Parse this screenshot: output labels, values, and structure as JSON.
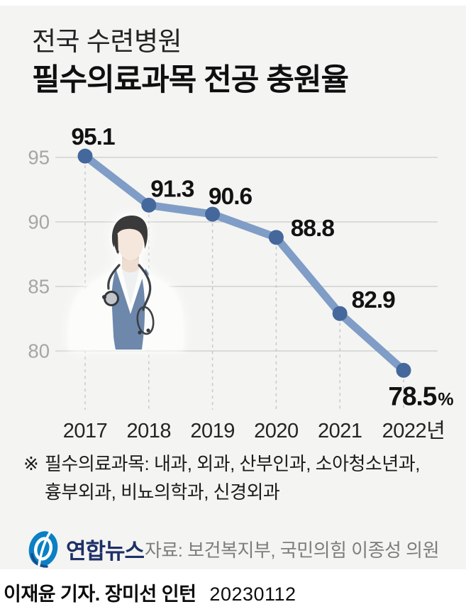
{
  "title": {
    "line1": "전국 수련병원",
    "line2": "필수의료과목 전공 충원율"
  },
  "chart_data": {
    "type": "line",
    "title": "전국 수련병원 필수의료과목 전공 충원율",
    "categories": [
      "2017",
      "2018",
      "2019",
      "2020",
      "2021",
      "2022년"
    ],
    "values": [
      95.1,
      91.3,
      90.6,
      88.8,
      82.9,
      78.5
    ],
    "value_labels": [
      "95.1",
      "91.3",
      "90.6",
      "88.8",
      "82.9",
      "78.5"
    ],
    "last_value_suffix": "%",
    "yticks": [
      "95",
      "90",
      "85",
      "80"
    ],
    "ylim": [
      76.5,
      97.5
    ],
    "grid": true,
    "legend": "none",
    "unit": "%",
    "line_color": "#7f9dc6",
    "point_color": "#44679c",
    "grid_color": "#cbcbc9",
    "dash_color": "#c8c8c6",
    "tick_color": "#a6a6a4",
    "label_color": "#121212",
    "year_color": "#242424"
  },
  "footnote": {
    "marker": "※",
    "line1": "필수의료과목: 내과, 외과, 산부인과, 소아청소년과,",
    "line2": "흉부외과, 비뇨의학과, 신경외과"
  },
  "footer": {
    "logo_text": "연합뉴스",
    "source": "자료: 보건복지부, 국민의힘 이종성 의원"
  },
  "credit": {
    "byline": "이재윤 기자. 장미선 인턴",
    "date": "20230112"
  },
  "colors": {
    "panel_bg": "#f4f4f2",
    "logo_blue": "#0b80c4",
    "logo_navy": "#1d3067"
  }
}
